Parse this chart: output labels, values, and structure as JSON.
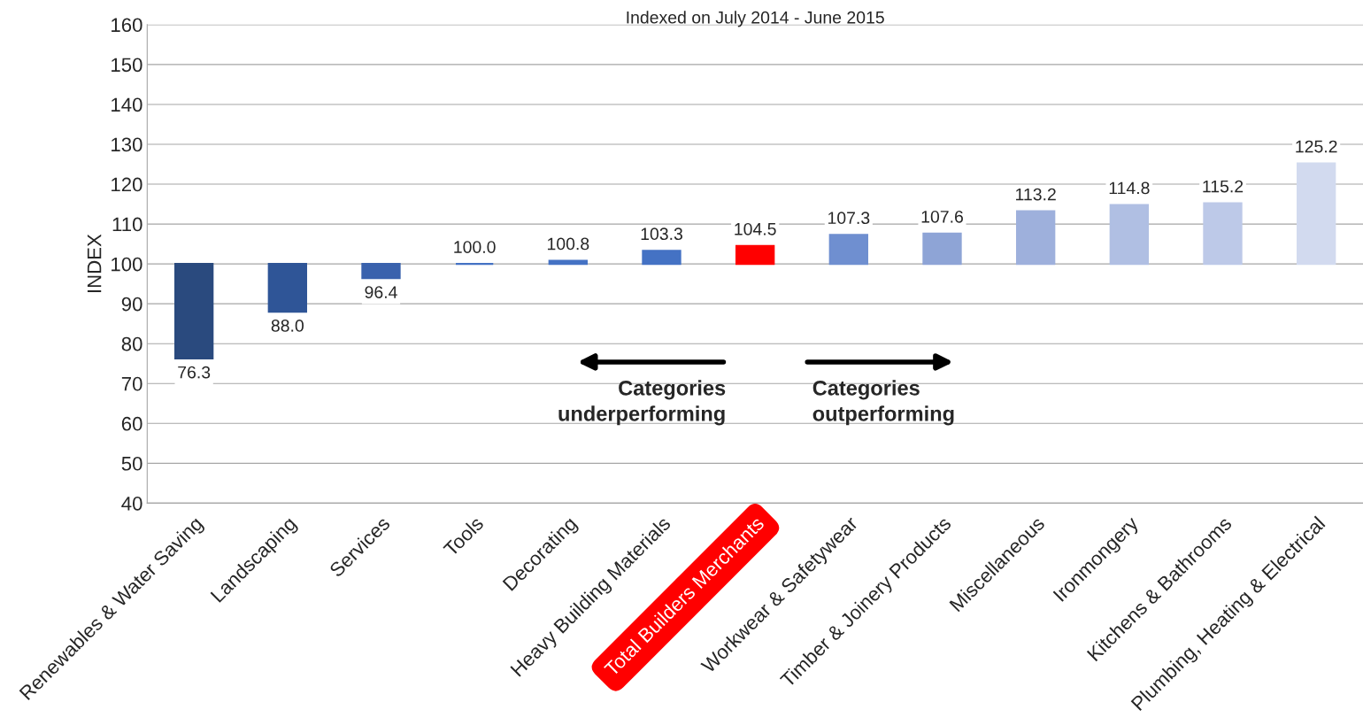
{
  "chart_data": {
    "type": "bar",
    "subtitle": "Indexed on July 2014 - June 2015",
    "ylabel": "INDEX",
    "categories": [
      "Renewables & Water Saving",
      "Landscaping",
      "Services",
      "Tools",
      "Decorating",
      "Heavy Building Materials",
      "Total Builders Merchants",
      "Workwear & Safetywear",
      "Timber & Joinery Products",
      "Miscellaneous",
      "Ironmongery",
      "Kitchens & Bathrooms",
      "Plumbing, Heating & Electrical"
    ],
    "base": [
      100,
      100,
      100,
      100,
      100,
      100,
      100,
      100,
      100,
      100,
      100,
      100,
      100
    ],
    "values": [
      -23.7,
      -12.0,
      -3.6,
      0.0,
      0.8,
      3.3,
      4.5,
      7.3,
      7.6,
      13.2,
      14.8,
      15.2,
      25.2
    ],
    "value_labels": [
      "76.3",
      "88.0",
      "96.4",
      "100.0",
      "100.8",
      "103.3",
      "104.5",
      "107.3",
      "107.6",
      "113.2",
      "114.8",
      "115.2",
      "125.2"
    ],
    "colors": [
      "#2a4a7e",
      "#2f5597",
      "#3a62ad",
      "#4472c4",
      "#4472c4",
      "#4472c4",
      "#ff0000",
      "#6f8fd0",
      "#8ea4d6",
      "#9eb0dc",
      "#b0bfe3",
      "#bdc9e8",
      "#d2daef"
    ],
    "ylim": [
      40,
      160
    ],
    "yticks": [
      40,
      50,
      60,
      70,
      80,
      90,
      100,
      110,
      120,
      130,
      140,
      150,
      160
    ],
    "grid": "y",
    "annotations": [
      "Categories\nunderperforming",
      "Categories\noutperforming"
    ]
  }
}
